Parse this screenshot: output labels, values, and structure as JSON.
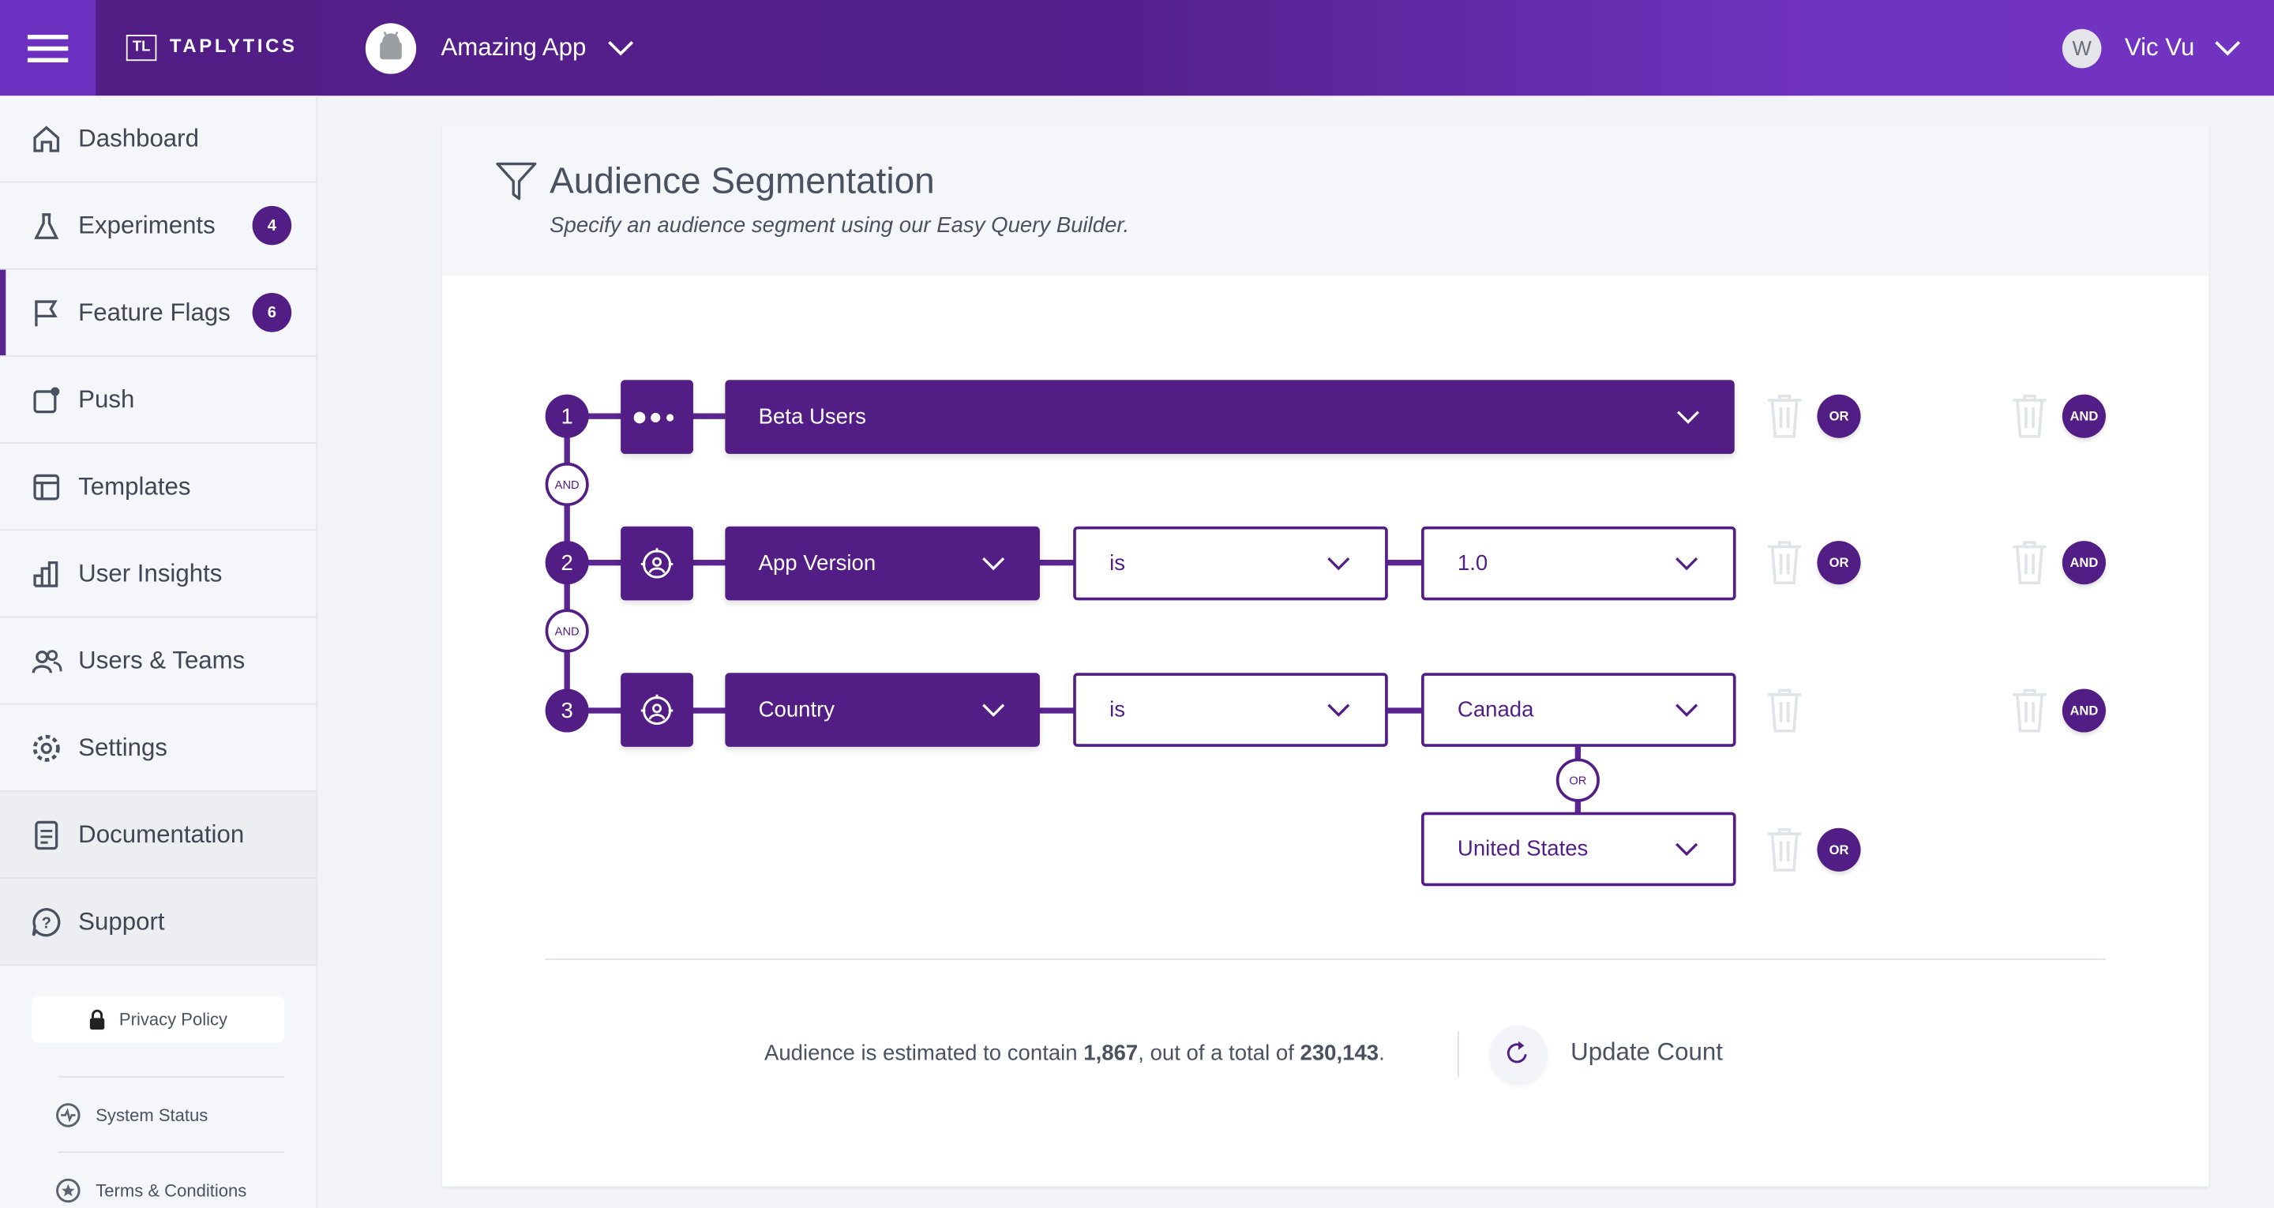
{
  "colors": {
    "brand": "#521e86",
    "accent": "#6c2fc0",
    "text": "#4a5160"
  },
  "header": {
    "brand": "TAPLYTICS",
    "app_name": "Amazing App",
    "user_initial": "W",
    "user_name": "Vic Vu"
  },
  "sidebar": {
    "items": [
      {
        "label": "Dashboard",
        "icon": "home-icon"
      },
      {
        "label": "Experiments",
        "icon": "flask-icon",
        "badge": "4"
      },
      {
        "label": "Feature Flags",
        "icon": "flag-icon",
        "badge": "6",
        "active": true
      },
      {
        "label": "Push",
        "icon": "push-icon"
      },
      {
        "label": "Templates",
        "icon": "template-icon"
      },
      {
        "label": "User Insights",
        "icon": "bar-chart-icon"
      },
      {
        "label": "Users & Teams",
        "icon": "users-icon"
      },
      {
        "label": "Settings",
        "icon": "gear-icon"
      },
      {
        "label": "Documentation",
        "icon": "document-icon"
      },
      {
        "label": "Support",
        "icon": "help-icon"
      }
    ],
    "privacy": "Privacy Policy",
    "status": "System Status",
    "terms": "Terms & Conditions"
  },
  "page": {
    "title": "Audience Segmentation",
    "subtitle": "Specify an audience segment using our Easy Query Builder."
  },
  "query": {
    "rows": [
      {
        "num": "1",
        "field": "Beta Users"
      },
      {
        "num": "2",
        "field": "App Version",
        "operator": "is",
        "value": "1.0"
      },
      {
        "num": "3",
        "field": "Country",
        "operator": "is",
        "value": "Canada",
        "or_value": "United States"
      }
    ],
    "and_label": "AND",
    "or_label": "OR"
  },
  "footer": {
    "prefix": "Audience is estimated to contain ",
    "count": "1,867",
    "middle": ", out of a total of ",
    "total": "230,143",
    "suffix": ".",
    "update": "Update Count"
  }
}
